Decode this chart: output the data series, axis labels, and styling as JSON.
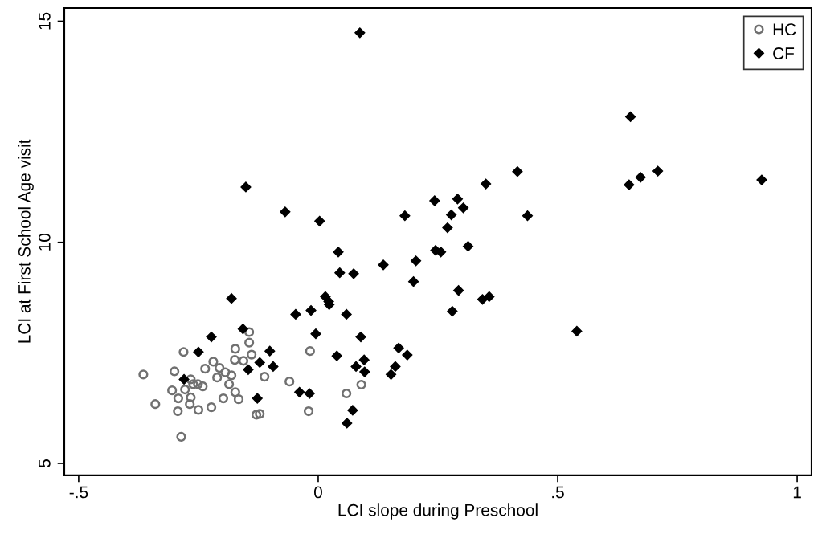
{
  "chart_data": {
    "type": "scatter",
    "xlabel": "LCI slope during Preschool",
    "ylabel": "LCI at First School Age visit",
    "xlim": [
      -0.53,
      1.03
    ],
    "ylim": [
      4.73,
      15.3
    ],
    "xticks": [
      {
        "value": -0.5,
        "label": "-.5"
      },
      0,
      {
        "value": 0.5,
        "label": ".5"
      },
      1
    ],
    "yticks": [
      5,
      10,
      15
    ],
    "grid": false,
    "legend": "top right",
    "series": [
      {
        "name": "HC",
        "color": "#707070",
        "marker": "circle",
        "x": [
          -0.365,
          -0.34,
          -0.286,
          -0.281,
          -0.3,
          -0.305,
          -0.292,
          -0.293,
          -0.266,
          -0.261,
          -0.278,
          -0.266,
          -0.268,
          -0.25,
          -0.241,
          -0.251,
          -0.236,
          -0.219,
          -0.223,
          -0.211,
          -0.206,
          -0.194,
          -0.186,
          -0.181,
          -0.198,
          -0.173,
          -0.166,
          -0.173,
          -0.174,
          -0.156,
          -0.144,
          -0.144,
          -0.139,
          -0.112,
          -0.129,
          -0.122,
          -0.06,
          -0.017,
          -0.02,
          0.059,
          0.09
        ],
        "values": [
          7.01,
          6.34,
          5.6,
          7.52,
          7.08,
          6.65,
          6.47,
          6.18,
          6.9,
          6.79,
          6.67,
          6.49,
          6.34,
          6.21,
          6.74,
          6.79,
          7.14,
          7.3,
          6.27,
          6.94,
          7.16,
          7.06,
          6.79,
          6.99,
          6.47,
          6.61,
          6.45,
          7.59,
          7.34,
          7.32,
          7.97,
          7.73,
          7.46,
          6.96,
          6.1,
          6.12,
          6.85,
          7.54,
          6.18,
          6.58,
          6.78
        ]
      },
      {
        "name": "CF",
        "color": "#000000",
        "marker": "diamond",
        "x": [
          0.087,
          -0.151,
          -0.069,
          0.003,
          0.181,
          0.243,
          0.291,
          0.303,
          0.278,
          0.27,
          0.042,
          0.045,
          0.074,
          0.136,
          0.204,
          0.199,
          0.245,
          0.256,
          0.313,
          0.293,
          -0.181,
          0.015,
          0.022,
          0.652,
          0.416,
          0.35,
          0.437,
          0.649,
          0.673,
          0.709,
          0.926,
          0.343,
          0.357,
          0.28,
          0.023,
          -0.015,
          0.059,
          0.54,
          -0.005,
          0.089,
          0.168,
          0.186,
          0.039,
          0.096,
          0.079,
          0.097,
          0.161,
          0.152,
          -0.018,
          0.072,
          0.06,
          -0.047,
          -0.157,
          -0.223,
          -0.25,
          -0.101,
          -0.122,
          -0.094,
          -0.146,
          -0.28,
          -0.039,
          -0.127
        ],
        "values": [
          14.74,
          11.25,
          10.69,
          10.48,
          10.6,
          10.94,
          10.98,
          10.78,
          10.62,
          10.33,
          9.78,
          9.31,
          9.29,
          9.49,
          9.58,
          9.11,
          9.82,
          9.78,
          9.91,
          8.91,
          8.73,
          8.77,
          8.66,
          12.84,
          11.6,
          11.32,
          10.6,
          11.3,
          11.47,
          11.61,
          11.41,
          8.71,
          8.77,
          8.44,
          8.59,
          8.46,
          8.37,
          7.99,
          7.93,
          7.86,
          7.61,
          7.45,
          7.43,
          7.34,
          7.19,
          7.07,
          7.19,
          7.01,
          6.58,
          6.2,
          5.91,
          8.37,
          8.04,
          7.86,
          7.52,
          7.54,
          7.28,
          7.19,
          7.12,
          6.9,
          6.61,
          6.47
        ]
      }
    ]
  }
}
